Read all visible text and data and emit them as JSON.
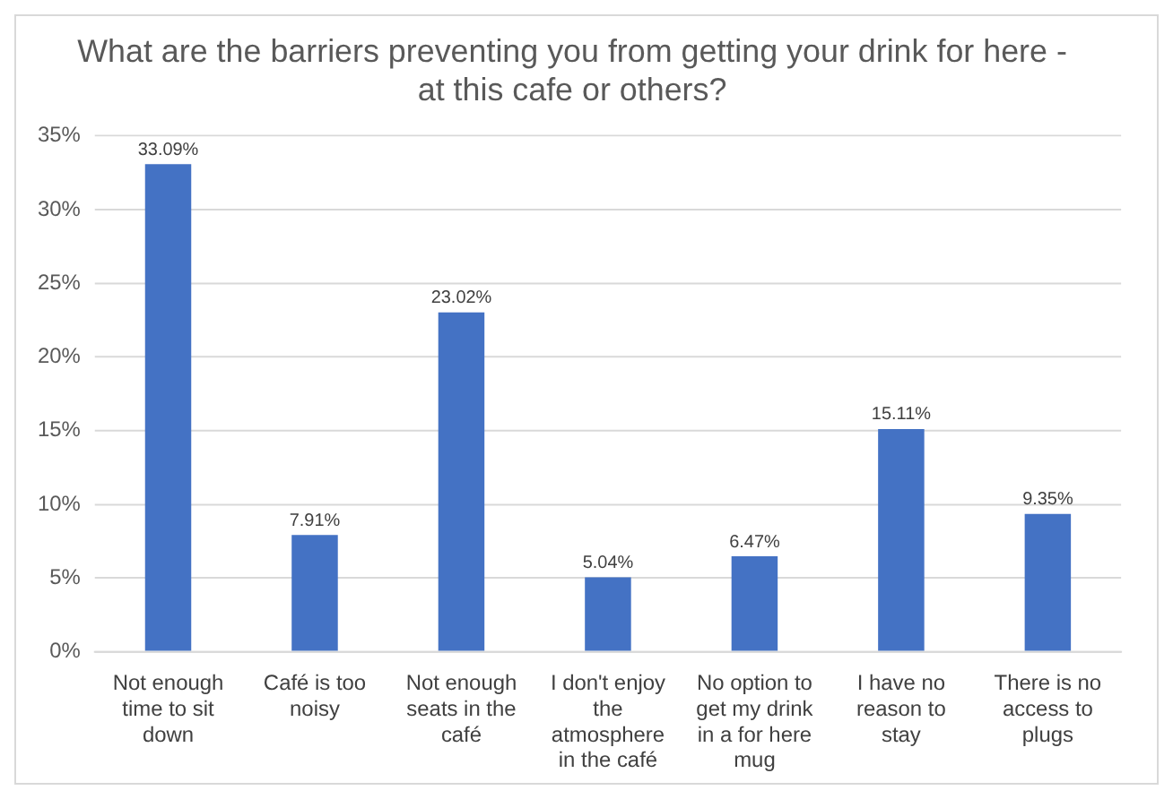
{
  "chart_data": {
    "type": "bar",
    "title": "What are the barriers preventing you from getting your drink for here - at this cafe or others?",
    "categories": [
      "Not enough time to sit down",
      "Café is too noisy",
      "Not enough seats in the café",
      "I don't enjoy the atmosphere in the café",
      "No option to get my drink in a for here mug",
      "I have no reason to stay",
      "There is no access to plugs"
    ],
    "values": [
      33.09,
      7.91,
      23.02,
      5.04,
      6.47,
      15.11,
      9.35
    ],
    "value_labels": [
      "33.09%",
      "7.91%",
      "23.02%",
      "5.04%",
      "6.47%",
      "15.11%",
      "9.35%"
    ],
    "color": "#4472c4",
    "ylim": [
      0,
      35
    ],
    "yticks": [
      {
        "value": 0,
        "label": "0%"
      },
      {
        "value": 5,
        "label": "5%"
      },
      {
        "value": 10,
        "label": "10%"
      },
      {
        "value": 15,
        "label": "15%"
      },
      {
        "value": 20,
        "label": "20%"
      },
      {
        "value": 25,
        "label": "25%"
      },
      {
        "value": 30,
        "label": "30%"
      },
      {
        "value": 35,
        "label": "35%"
      }
    ],
    "grid": "y",
    "legend": false
  }
}
